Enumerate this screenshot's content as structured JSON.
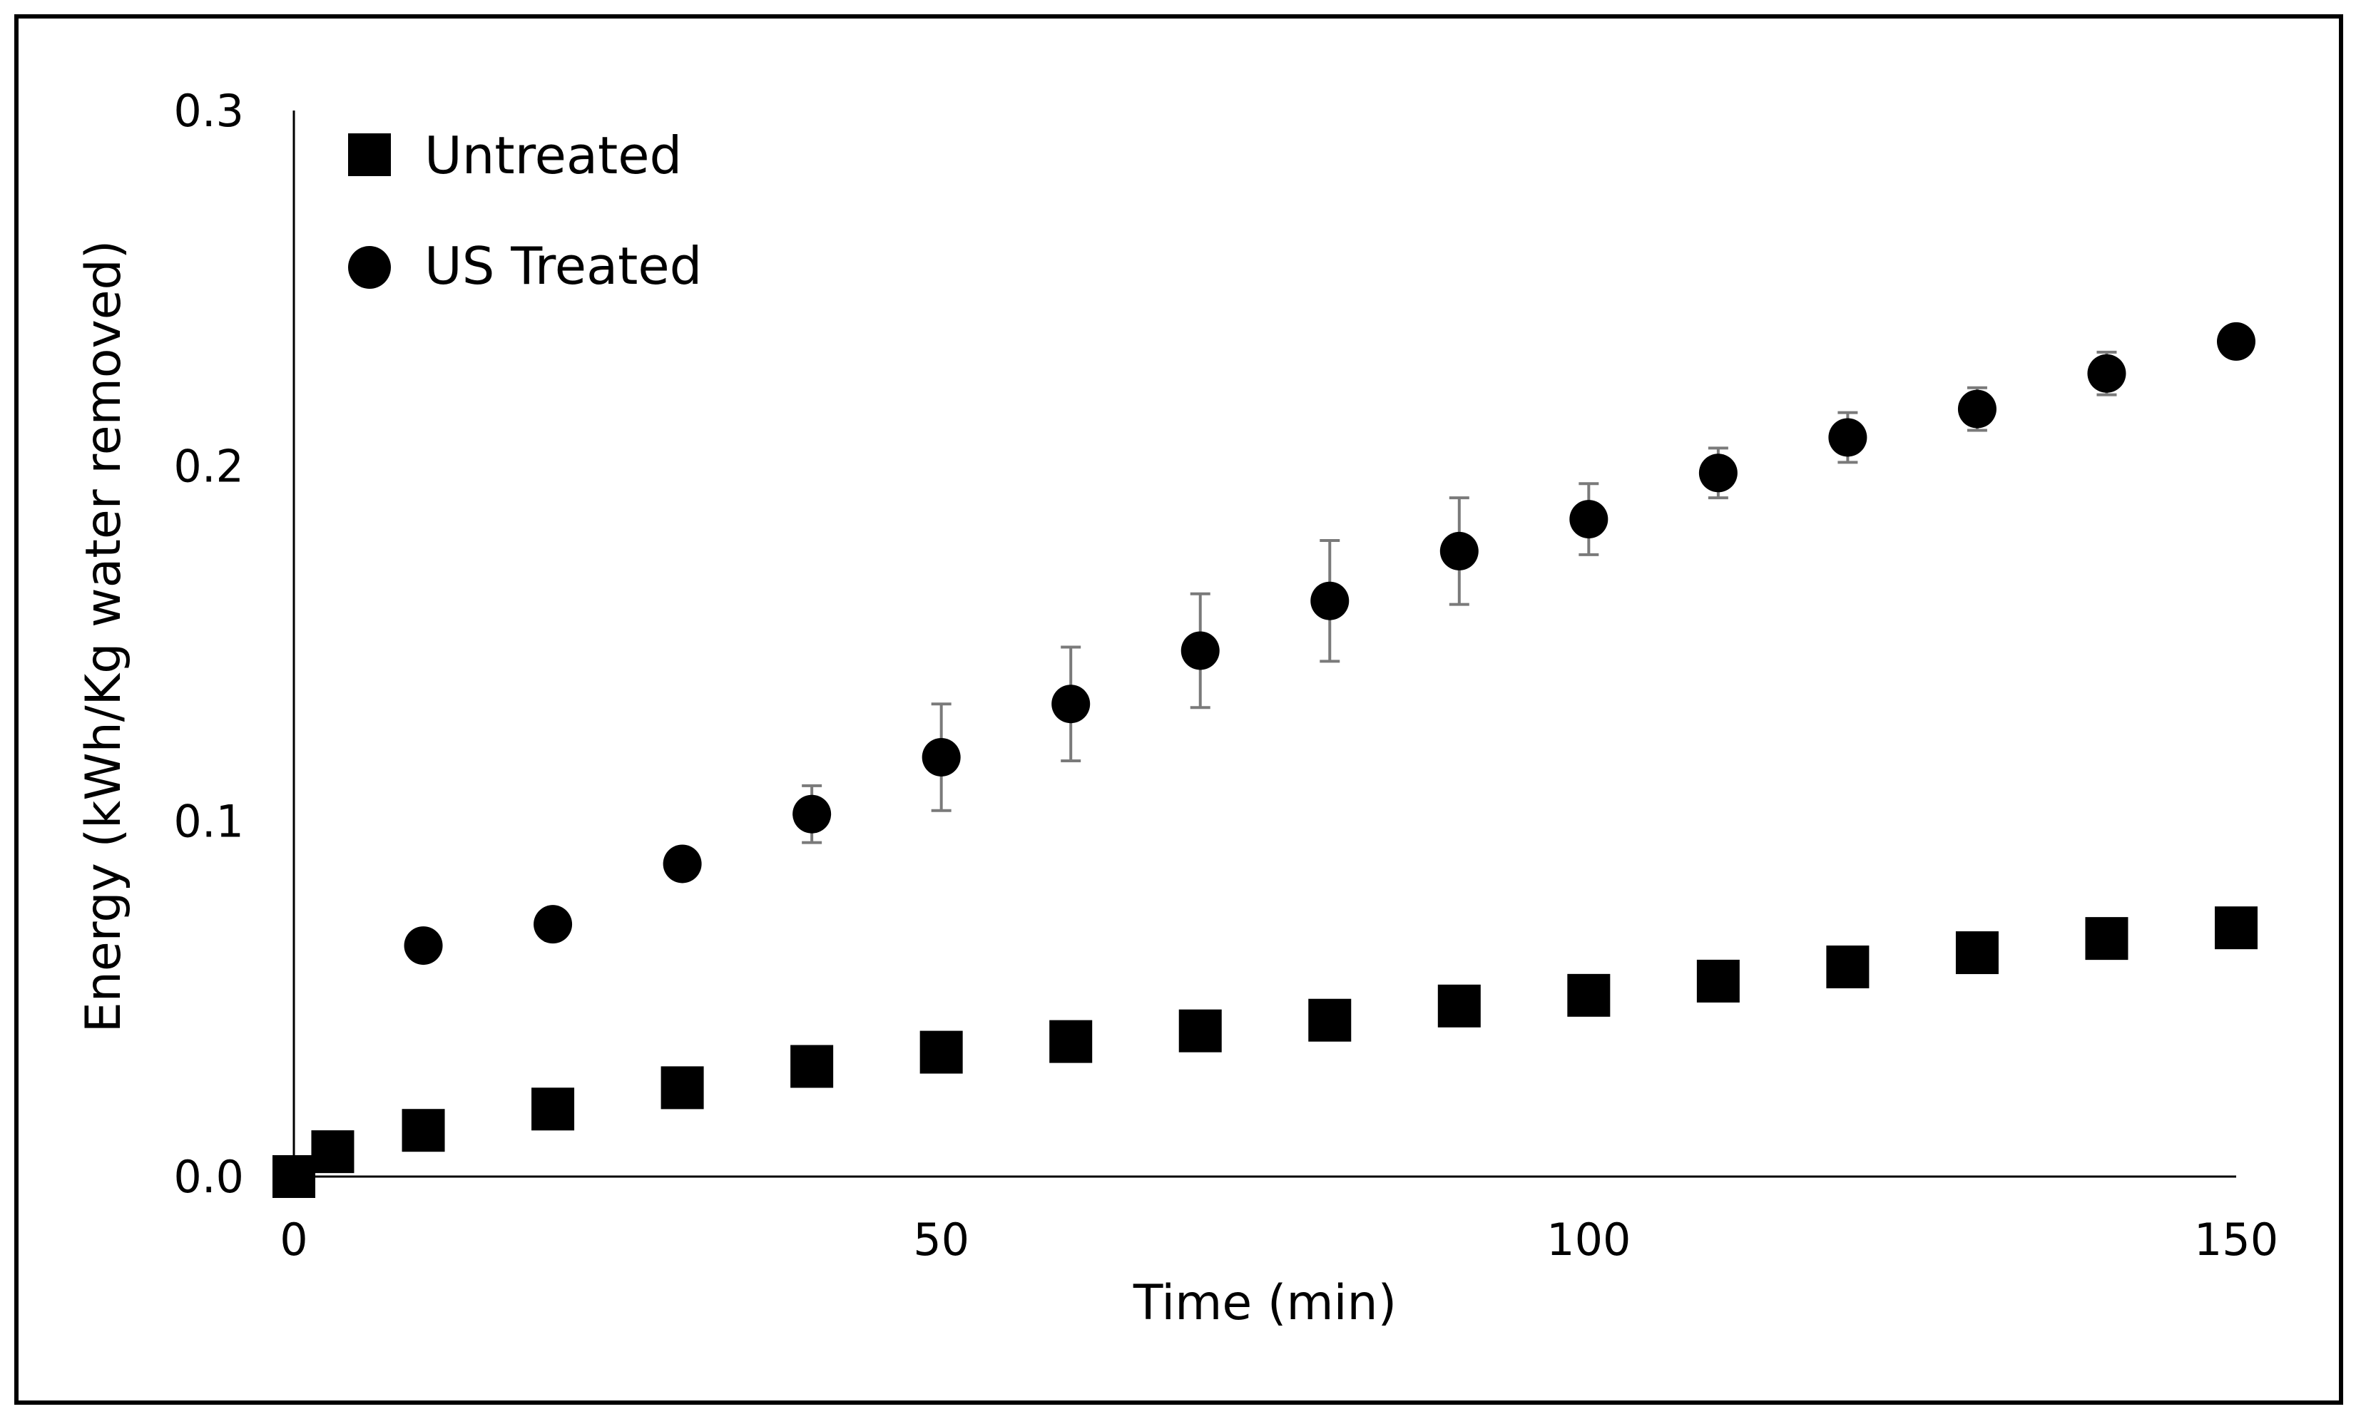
{
  "chart_data": {
    "type": "scatter",
    "title": "",
    "xlabel": "Time (min)",
    "ylabel": "Energy (kWh/Kg water removed)",
    "xlim": [
      0,
      150
    ],
    "ylim": [
      0,
      0.3
    ],
    "x_ticks": [
      0,
      50,
      100,
      150
    ],
    "x_tick_labels": [
      "0",
      "50",
      "100",
      "150"
    ],
    "y_ticks": [
      0,
      0.1,
      0.2,
      0.3
    ],
    "y_tick_labels": [
      "0.0",
      "0.1",
      "0.2",
      "0.3"
    ],
    "grid": false,
    "legend_position": "top-left",
    "series": [
      {
        "name": "Untreated",
        "marker": "square",
        "color": "#000000",
        "x": [
          0,
          3,
          10,
          20,
          30,
          40,
          50,
          60,
          70,
          80,
          90,
          100,
          110,
          120,
          130,
          140,
          150
        ],
        "y": [
          0.0,
          0.007,
          0.013,
          0.019,
          0.025,
          0.031,
          0.035,
          0.038,
          0.041,
          0.044,
          0.048,
          0.051,
          0.055,
          0.059,
          0.063,
          0.067,
          0.07
        ]
      },
      {
        "name": "US Treated",
        "marker": "circle",
        "color": "#000000",
        "x": [
          10,
          20,
          30,
          40,
          50,
          60,
          70,
          80,
          90,
          100,
          110,
          120,
          130,
          140,
          150
        ],
        "y": [
          0.065,
          0.071,
          0.088,
          0.102,
          0.118,
          0.133,
          0.148,
          0.162,
          0.176,
          0.185,
          0.198,
          0.208,
          0.216,
          0.226,
          0.235
        ],
        "error": [
          0.0,
          0.0,
          0.0,
          0.008,
          0.015,
          0.016,
          0.016,
          0.017,
          0.015,
          0.01,
          0.007,
          0.007,
          0.006,
          0.006,
          0.0
        ]
      }
    ]
  }
}
